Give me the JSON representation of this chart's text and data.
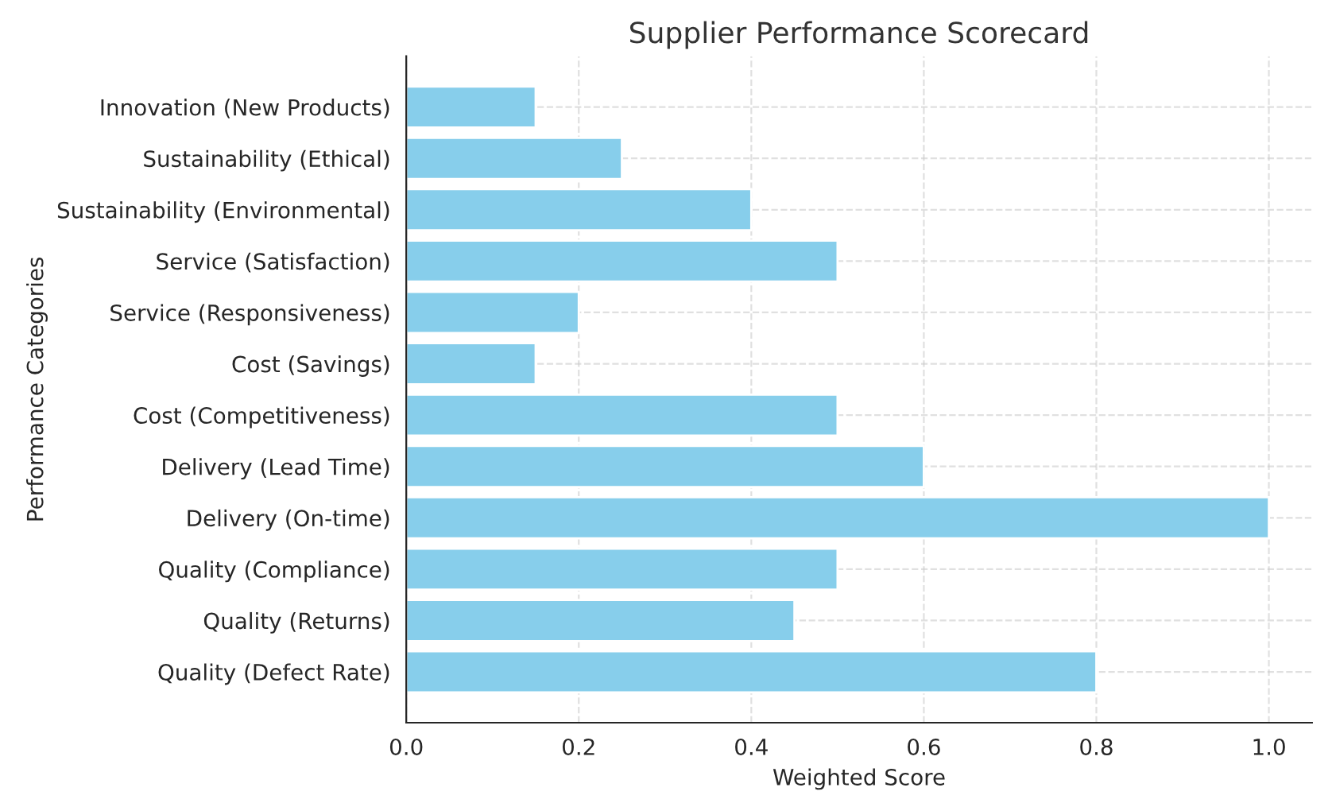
{
  "chart_data": {
    "type": "bar",
    "orientation": "horizontal",
    "title": "Supplier Performance Scorecard",
    "xlabel": "Weighted Score",
    "ylabel": "Performance Categories",
    "categories": [
      "Innovation (New Products)",
      "Sustainability (Ethical)",
      "Sustainability (Environmental)",
      "Service (Satisfaction)",
      "Service (Responsiveness)",
      "Cost (Savings)",
      "Cost (Competitiveness)",
      "Delivery (Lead Time)",
      "Delivery (On-time)",
      "Quality (Compliance)",
      "Quality (Returns)",
      "Quality (Defect Rate)"
    ],
    "values": [
      0.15,
      0.25,
      0.4,
      0.5,
      0.2,
      0.15,
      0.5,
      0.6,
      1.0,
      0.5,
      0.45,
      0.8
    ],
    "color": "#87ceeb",
    "xlim": [
      0,
      1.05
    ],
    "xticks": [
      {
        "value": 0,
        "label": "0.0"
      },
      0.2,
      0.4,
      0.6,
      0.8,
      {
        "value": 1.0,
        "label": "1.0"
      }
    ],
    "grid": true,
    "line_style": "dashed"
  }
}
